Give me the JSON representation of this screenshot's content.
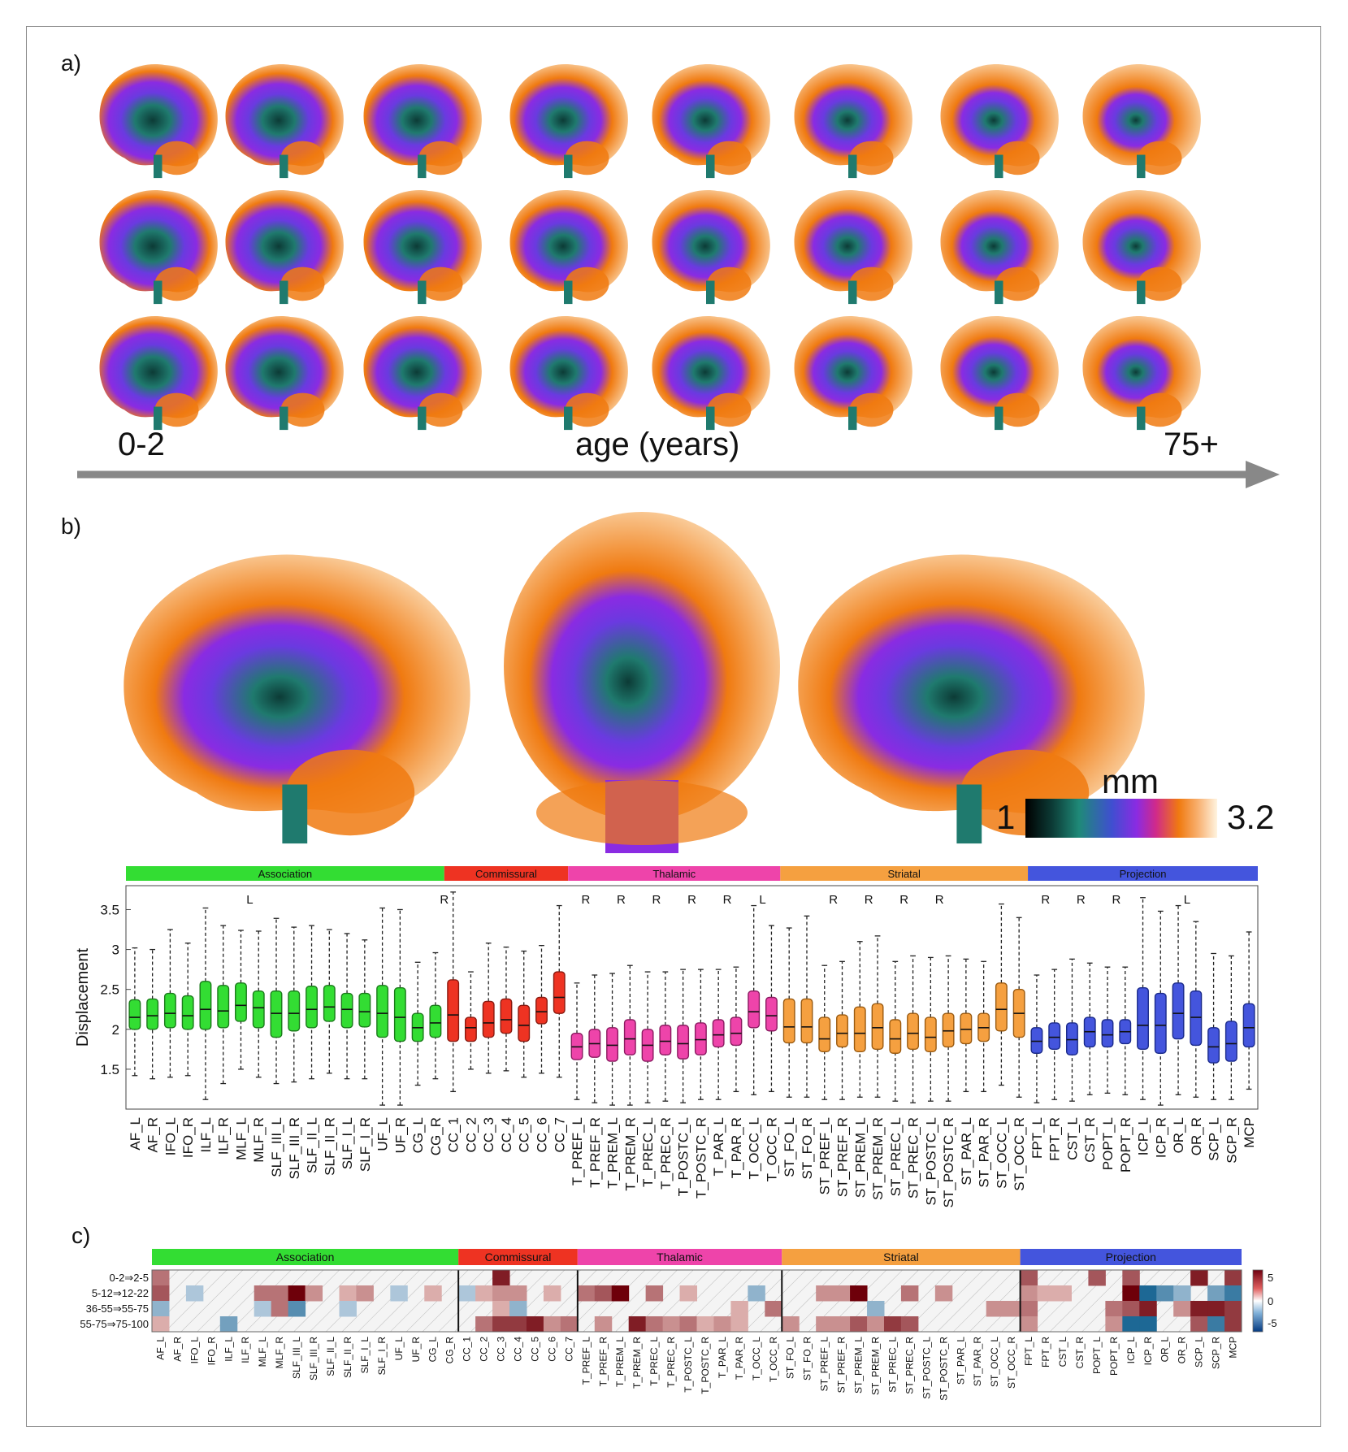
{
  "panels": {
    "a": "a)",
    "b": "b)",
    "c": "c)"
  },
  "panel_a": {
    "start_label": "0-2",
    "axis_label": "age (years)",
    "end_label": "75+"
  },
  "colorbar": {
    "unit": "mm",
    "min": "1",
    "max": "3.2"
  },
  "colors": {
    "Association": "#33dd33",
    "Commissural": "#ee3322",
    "Thalamic": "#ee44aa",
    "Striatal": "#f5a040",
    "Projection": "#4455dd",
    "orange": "#f07a10",
    "purple": "#8a2be2",
    "teal": "#1f7a6e"
  },
  "chart_data": [
    {
      "type": "box",
      "ylabel": "Displacement",
      "ylim": [
        1.0,
        3.8
      ],
      "yticks": [
        1.5,
        2,
        2.5,
        3,
        3.5
      ],
      "groups": [
        {
          "name": "Association",
          "count": 18
        },
        {
          "name": "Commissural",
          "count": 7
        },
        {
          "name": "Thalamic",
          "count": 12
        },
        {
          "name": "Striatal",
          "count": 14
        },
        {
          "name": "Projection",
          "count": 13
        }
      ],
      "categories": [
        "AF_L",
        "AF_R",
        "IFO_L",
        "IFO_R",
        "ILF_L",
        "ILF_R",
        "MLF_L",
        "MLF_R",
        "SLF_III_L",
        "SLF_III_R",
        "SLF_II_L",
        "SLF_II_R",
        "SLF_I_L",
        "SLF_I_R",
        "UF_L",
        "UF_R",
        "CG_L",
        "CG_R",
        "CC_1",
        "CC_2",
        "CC_3",
        "CC_4",
        "CC_5",
        "CC_6",
        "CC_7",
        "T_PREF_L",
        "T_PREF_R",
        "T_PREM_L",
        "T_PREM_R",
        "T_PREC_L",
        "T_PREC_R",
        "T_POSTC_L",
        "T_POSTC_R",
        "T_PAR_L",
        "T_PAR_R",
        "T_OCC_L",
        "T_OCC_R",
        "ST_FO_L",
        "ST_FO_R",
        "ST_PREF_L",
        "ST_PREF_R",
        "ST_PREM_L",
        "ST_PREM_R",
        "ST_PREC_L",
        "ST_PREC_R",
        "ST_POSTC_L",
        "ST_POSTC_R",
        "ST_PAR_L",
        "ST_PAR_R",
        "ST_OCC_L",
        "ST_OCC_R",
        "FPT_L",
        "FPT_R",
        "CST_L",
        "CST_R",
        "POPT_L",
        "POPT_R",
        "ICP_L",
        "ICP_R",
        "OR_L",
        "OR_R",
        "SCP_L",
        "SCP_R",
        "MCP"
      ],
      "boxes": [
        [
          1.42,
          2.0,
          2.15,
          2.37,
          3.02
        ],
        [
          1.38,
          2.0,
          2.17,
          2.38,
          3.0
        ],
        [
          1.4,
          2.02,
          2.2,
          2.45,
          3.25
        ],
        [
          1.42,
          2.0,
          2.17,
          2.42,
          3.08
        ],
        [
          1.12,
          2.0,
          2.25,
          2.6,
          3.52
        ],
        [
          1.32,
          2.02,
          2.23,
          2.55,
          3.3
        ],
        [
          1.5,
          2.1,
          2.3,
          2.58,
          3.24
        ],
        [
          1.4,
          2.02,
          2.27,
          2.48,
          3.23
        ],
        [
          1.32,
          1.9,
          2.2,
          2.48,
          3.39
        ],
        [
          1.34,
          1.98,
          2.2,
          2.48,
          3.28
        ],
        [
          1.38,
          2.02,
          2.25,
          2.54,
          3.3
        ],
        [
          1.45,
          2.1,
          2.28,
          2.55,
          3.25
        ],
        [
          1.38,
          2.02,
          2.25,
          2.45,
          3.2
        ],
        [
          1.38,
          2.03,
          2.22,
          2.45,
          3.12
        ],
        [
          1.05,
          1.9,
          2.2,
          2.55,
          3.52
        ],
        [
          1.05,
          1.85,
          2.15,
          2.52,
          3.5
        ],
        [
          1.3,
          1.85,
          2.02,
          2.2,
          2.84
        ],
        [
          1.38,
          1.9,
          2.08,
          2.3,
          2.96
        ],
        [
          1.22,
          1.85,
          2.18,
          2.62,
          3.72
        ],
        [
          1.5,
          1.85,
          2.02,
          2.15,
          2.72
        ],
        [
          1.45,
          1.9,
          2.08,
          2.35,
          3.08
        ],
        [
          1.48,
          1.95,
          2.12,
          2.38,
          3.03
        ],
        [
          1.4,
          1.85,
          2.05,
          2.3,
          2.98
        ],
        [
          1.45,
          2.07,
          2.22,
          2.4,
          3.05
        ],
        [
          1.4,
          2.2,
          2.4,
          2.72,
          3.55
        ],
        [
          1.12,
          1.62,
          1.78,
          1.95,
          2.58
        ],
        [
          1.08,
          1.65,
          1.82,
          2.0,
          2.68
        ],
        [
          1.05,
          1.6,
          1.8,
          2.02,
          2.7
        ],
        [
          1.05,
          1.68,
          1.88,
          2.12,
          2.8
        ],
        [
          1.08,
          1.6,
          1.8,
          2.0,
          2.72
        ],
        [
          1.1,
          1.68,
          1.85,
          2.05,
          2.72
        ],
        [
          1.08,
          1.63,
          1.82,
          2.05,
          2.75
        ],
        [
          1.12,
          1.68,
          1.87,
          2.08,
          2.75
        ],
        [
          1.12,
          1.78,
          1.93,
          2.12,
          2.75
        ],
        [
          1.22,
          1.8,
          1.95,
          2.15,
          2.78
        ],
        [
          1.18,
          2.02,
          2.22,
          2.48,
          3.55
        ],
        [
          1.22,
          1.98,
          2.17,
          2.4,
          3.3
        ],
        [
          1.15,
          1.83,
          2.03,
          2.38,
          3.27
        ],
        [
          1.15,
          1.83,
          2.03,
          2.38,
          3.42
        ],
        [
          1.12,
          1.72,
          1.88,
          2.15,
          2.8
        ],
        [
          1.12,
          1.78,
          1.95,
          2.18,
          2.85
        ],
        [
          1.15,
          1.72,
          1.95,
          2.28,
          3.1
        ],
        [
          1.15,
          1.75,
          2.02,
          2.32,
          3.17
        ],
        [
          1.1,
          1.7,
          1.88,
          2.12,
          2.85
        ],
        [
          1.08,
          1.75,
          1.95,
          2.2,
          2.92
        ],
        [
          1.1,
          1.72,
          1.9,
          2.15,
          2.9
        ],
        [
          1.1,
          1.78,
          1.98,
          2.2,
          2.92
        ],
        [
          1.22,
          1.82,
          2.0,
          2.2,
          2.88
        ],
        [
          1.22,
          1.85,
          2.02,
          2.2,
          2.85
        ],
        [
          1.3,
          1.98,
          2.25,
          2.58,
          3.57
        ],
        [
          1.15,
          1.9,
          2.2,
          2.5,
          3.4
        ],
        [
          1.08,
          1.7,
          1.85,
          2.02,
          2.68
        ],
        [
          1.12,
          1.75,
          1.9,
          2.08,
          2.75
        ],
        [
          1.1,
          1.68,
          1.87,
          2.08,
          2.88
        ],
        [
          1.18,
          1.78,
          1.97,
          2.15,
          2.83
        ],
        [
          1.2,
          1.78,
          1.93,
          2.12,
          2.78
        ],
        [
          1.18,
          1.82,
          1.97,
          2.12,
          2.78
        ],
        [
          1.12,
          1.75,
          2.05,
          2.52,
          3.65
        ],
        [
          1.05,
          1.7,
          2.05,
          2.45,
          3.48
        ],
        [
          1.18,
          1.88,
          2.2,
          2.58,
          3.55
        ],
        [
          1.15,
          1.8,
          2.15,
          2.48,
          3.35
        ],
        [
          1.12,
          1.58,
          1.78,
          2.02,
          2.95
        ],
        [
          1.12,
          1.6,
          1.82,
          2.1,
          2.92
        ],
        [
          1.25,
          1.78,
          2.02,
          2.32,
          3.22
        ]
      ],
      "annotations": [
        {
          "category": "MLF_L",
          "label": "L"
        },
        {
          "category": "CG_R",
          "label": "R"
        },
        {
          "category": "T_PREF_L",
          "label": "R"
        },
        {
          "category": "T_PREM_L",
          "label": "R"
        },
        {
          "category": "T_PREC_L",
          "label": "R"
        },
        {
          "category": "T_POSTC_L",
          "label": "R"
        },
        {
          "category": "T_PAR_L",
          "label": "R"
        },
        {
          "category": "T_OCC_L",
          "label": "L"
        },
        {
          "category": "ST_PREF_L",
          "label": "R"
        },
        {
          "category": "ST_PREM_L",
          "label": "R"
        },
        {
          "category": "ST_PREC_L",
          "label": "R"
        },
        {
          "category": "ST_POSTC_L",
          "label": "R"
        },
        {
          "category": "FPT_L",
          "label": "R"
        },
        {
          "category": "CST_L",
          "label": "R"
        },
        {
          "category": "POPT_L",
          "label": "R"
        },
        {
          "category": "OR_L",
          "label": "L"
        }
      ]
    },
    {
      "type": "heatmap",
      "rows": [
        "0-2⇒2-5",
        "5-12⇒12-22",
        "36-55⇒55-75",
        "55-75⇒75-100"
      ],
      "colorbar_ticks": [
        "5",
        "0",
        "-5"
      ],
      "clim": [
        -8,
        8
      ],
      "values": [
        [
          4,
          0,
          0,
          0,
          0,
          0,
          0,
          0,
          0,
          0,
          0,
          0,
          0,
          0,
          0,
          0,
          0,
          0,
          0,
          0,
          7,
          0,
          0,
          0,
          0,
          0,
          0,
          0,
          0,
          0,
          0,
          0,
          0,
          0,
          0,
          0,
          0,
          0,
          0,
          0,
          0,
          0,
          0,
          0,
          0,
          0,
          0,
          0,
          0,
          0,
          0,
          5,
          0,
          0,
          0,
          5,
          0,
          5,
          0,
          0,
          0,
          7,
          0,
          6
        ],
        [
          5,
          0,
          -2,
          0,
          0,
          0,
          4,
          4,
          8,
          3,
          0,
          2,
          3,
          0,
          -2,
          0,
          2,
          0,
          -2,
          2,
          3,
          3,
          0,
          2,
          0,
          4,
          5,
          8,
          0,
          4,
          0,
          2,
          0,
          0,
          0,
          -3,
          0,
          0,
          0,
          3,
          3,
          8,
          0,
          0,
          4,
          0,
          3,
          0,
          0,
          0,
          0,
          3,
          2,
          2,
          0,
          0,
          0,
          8,
          -7,
          -5,
          -3,
          0,
          -4,
          -6
        ],
        [
          -3,
          0,
          0,
          0,
          0,
          0,
          -2,
          4,
          -5,
          0,
          0,
          -2,
          0,
          0,
          0,
          0,
          0,
          0,
          0,
          0,
          2,
          -3,
          0,
          0,
          0,
          0,
          0,
          0,
          0,
          0,
          0,
          0,
          0,
          0,
          2,
          0,
          4,
          0,
          0,
          0,
          0,
          0,
          -3,
          0,
          0,
          0,
          0,
          0,
          0,
          3,
          3,
          4,
          0,
          0,
          0,
          0,
          4,
          5,
          7,
          0,
          3,
          7,
          7,
          6
        ],
        [
          2,
          0,
          0,
          0,
          -4,
          0,
          0,
          0,
          0,
          0,
          0,
          0,
          0,
          0,
          0,
          0,
          0,
          0,
          0,
          4,
          6,
          6,
          7,
          3,
          4,
          0,
          3,
          0,
          7,
          4,
          3,
          4,
          2,
          3,
          2,
          0,
          0,
          3,
          0,
          3,
          3,
          5,
          3,
          6,
          5,
          0,
          0,
          0,
          0,
          0,
          0,
          3,
          0,
          0,
          0,
          0,
          3,
          -7,
          -7,
          0,
          0,
          5,
          -6,
          6
        ]
      ]
    }
  ]
}
